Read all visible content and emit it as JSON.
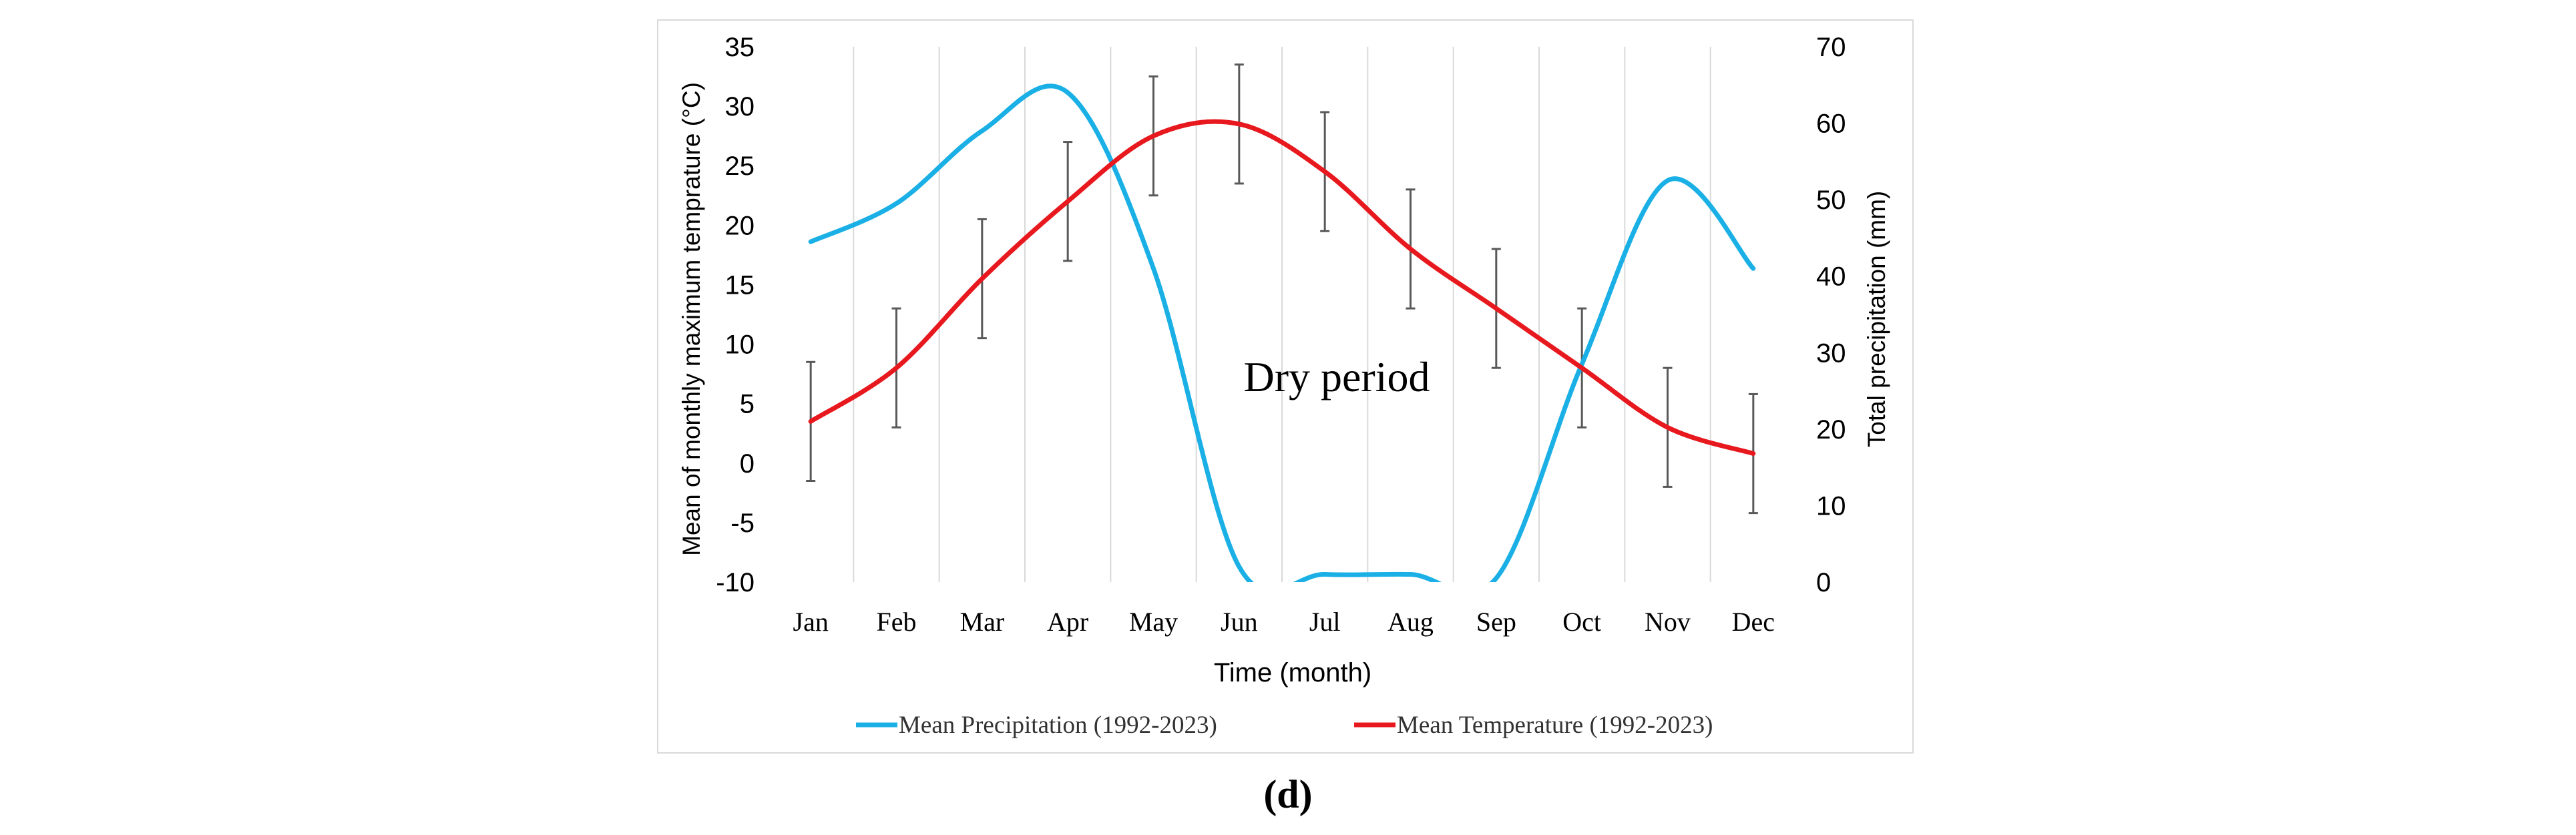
{
  "chart_data": {
    "type": "line",
    "categories": [
      "Jan",
      "Feb",
      "Mar",
      "Apr",
      "May",
      "Jun",
      "Jul",
      "Aug",
      "Sep",
      "Oct",
      "Nov",
      "Dec"
    ],
    "xlabel": "Time (month)",
    "ylabel_left": "Mean of monthly maximum temprature (°C)",
    "ylabel_right": "Total precipitation (mm)",
    "ylim_left": [
      -10,
      35
    ],
    "yticks_left": [
      35,
      30,
      25,
      20,
      15,
      10,
      5,
      0,
      -5,
      -10
    ],
    "ylim_right": [
      0,
      70
    ],
    "yticks_right": [
      70,
      60,
      50,
      40,
      30,
      20,
      10,
      0
    ],
    "annotation": "Dry period",
    "panel_label": "(d)",
    "grid": "vertical",
    "legend_position": "bottom",
    "series": [
      {
        "name": "Mean Precipitation (1992-2023)",
        "axis": "right",
        "color": "#1ab0e6",
        "values": [
          44.5,
          49.5,
          59,
          64,
          41,
          2,
          1,
          1,
          0.5,
          28.5,
          52.5,
          41
        ]
      },
      {
        "name": "Mean Temperature (1992-2023)",
        "axis": "left",
        "color": "#e8191e",
        "values": [
          3.5,
          8,
          15.5,
          22,
          27.5,
          28.5,
          24.5,
          18,
          13,
          8,
          3,
          0.8
        ],
        "error": [
          5,
          5,
          5,
          5,
          5,
          5,
          5,
          5,
          5,
          5,
          5,
          5
        ]
      }
    ]
  }
}
